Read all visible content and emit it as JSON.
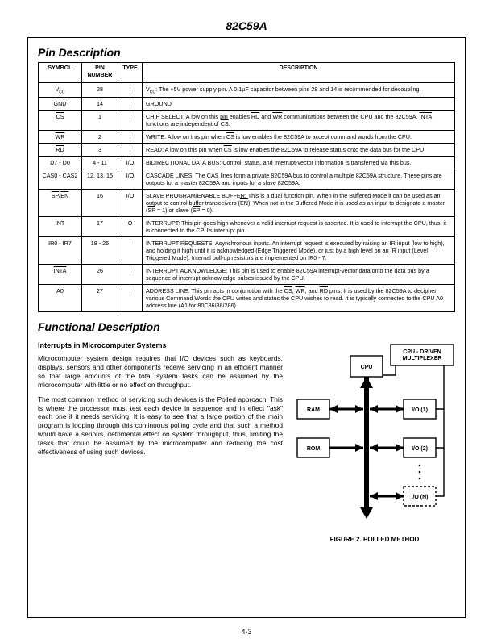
{
  "page": {
    "title": "82C59A",
    "section1_title": "Pin Description",
    "section2_title": "Functional Description",
    "footer": "4-3"
  },
  "pin_table": {
    "headers": [
      "SYMBOL",
      "PIN NUMBER",
      "TYPE",
      "DESCRIPTION"
    ],
    "rows": [
      {
        "sym_html": "V<span class='sub'>CC</span>",
        "num": "28",
        "typ": "I",
        "desc_html": "V<span class='sub'>CC</span>: The +5V power supply pin. A 0.1µF capacitor between pins 28 and 14 is recommended for decoupling."
      },
      {
        "sym_html": "GND",
        "num": "14",
        "typ": "I",
        "desc_html": "GROUND"
      },
      {
        "sym_html": "<span class='ov'>CS</span>",
        "num": "1",
        "typ": "I",
        "desc_html": "CHIP SELECT: A low on this pin enables <span class='ov'>RD</span> and <span class='ov'>WR</span> communications between the CPU and the 82C59A. <span class='ov'>INTA</span> functions are independent of <span class='ov'>CS</span>."
      },
      {
        "sym_html": "<span class='ov'>WR</span>",
        "num": "2",
        "typ": "I",
        "desc_html": "WRITE: A low on this pin when <span class='ov'>CS</span> is low enables the 82C59A to accept command words from the CPU."
      },
      {
        "sym_html": "<span class='ov'>RD</span>",
        "num": "3",
        "typ": "I",
        "desc_html": "READ: A low on this pin when <span class='ov'>CS</span> is low enables the 82C59A to release status onto the data bus for the CPU."
      },
      {
        "sym_html": "D7 - D0",
        "num": "4 - 11",
        "typ": "I/O",
        "desc_html": "BIDIRECTIONAL DATA BUS: Control, status, and interrupt-vector information is transferred via this bus."
      },
      {
        "sym_html": "CAS0 - CAS2",
        "num": "12, 13, 15",
        "typ": "I/O",
        "desc_html": "CASCADE LINES: The CAS lines form a private 82C59A bus to control a multiple 82C59A structure. These pins are outputs for a master 82C59A and inputs for a slave 82C59A."
      },
      {
        "sym_html": "<span class='ov'>SP</span>/<span class='ov'>EN</span>",
        "num": "16",
        "typ": "I/O",
        "desc_html": "SLAVE PROGRAM/ENABLE BUFFER: This is a dual function pin. When in the Buffered Mode it can be used as an output to control buffer transceivers (<span class='ov'>EN</span>). When not in the Buffered Mode it is used as an input to designate a master (<span class='ov'>SP</span> = 1) or slave (<span class='ov'>SP</span> = 0)."
      },
      {
        "sym_html": "INT",
        "num": "17",
        "typ": "O",
        "desc_html": "INTERRUPT: This pin goes high whenever a valid interrupt request is asserted. It is used to interrupt the CPU, thus, it is connected to the CPU's interrupt pin."
      },
      {
        "sym_html": "IR0 - IR7",
        "num": "18 - 25",
        "typ": "I",
        "desc_html": "INTERRUPT REQUESTS: Asynchronous inputs. An interrupt request is executed by raising an IR input (low to high), and holding it high until it is acknowledged (Edge Triggered Mode), or just by a high level on an IR input (Level Triggered Mode). Internal pull-up resistors are implemented on IR0 - 7."
      },
      {
        "sym_html": "<span class='ov'>INTA</span>",
        "num": "26",
        "typ": "I",
        "desc_html": "INTERRUPT ACKNOWLEDGE: This pin is used to enable 82C59A interrupt-vector data onto the data bus by a sequence of interrupt acknowledge pulses issued by the CPU."
      },
      {
        "sym_html": "A0",
        "num": "27",
        "typ": "I",
        "desc_html": "ADDRESS LINE: This pin acts in conjunction with the <span class='ov'>CS</span>, <span class='ov'>WR</span>, and <span class='ov'>RD</span> pins. It is used by the 82C59A to decipher various Command Words the CPU writes and status the CPU wishes to read. It is typically connected to the CPU A0 address line (A1 for 80C86/88/286)."
      }
    ]
  },
  "functional": {
    "subheading": "Interrupts in Microcomputer Systems",
    "p1": "Microcomputer system design requires that I/O devices such as keyboards, displays, sensors and other components receive servicing in an efficient manner so that large amounts of the total system tasks can be assumed by the microcomputer with little or no effect on throughput.",
    "p2": "The most common method of servicing such devices is the Polled approach. This is where the processor must test each device in sequence and in effect \"ask\" each one if it needs servicing. It is easy to see that a large portion of the main program is looping through this continuous polling cycle and that such a method would have a serious, detrimental effect on system throughput, thus, limiting the tasks that could be assumed by the microcomputer and reducing the cost effectiveness of using such devices."
  },
  "diagram": {
    "caption": "FIGURE 2.  POLLED METHOD",
    "labels": {
      "cpu": "CPU",
      "ram": "RAM",
      "rom": "ROM",
      "io1": "I/O (1)",
      "io2": "I/O (2)",
      "ion": "I/O (N)",
      "mux": "CPU - DRIVEN MULTIPLEXER"
    }
  }
}
